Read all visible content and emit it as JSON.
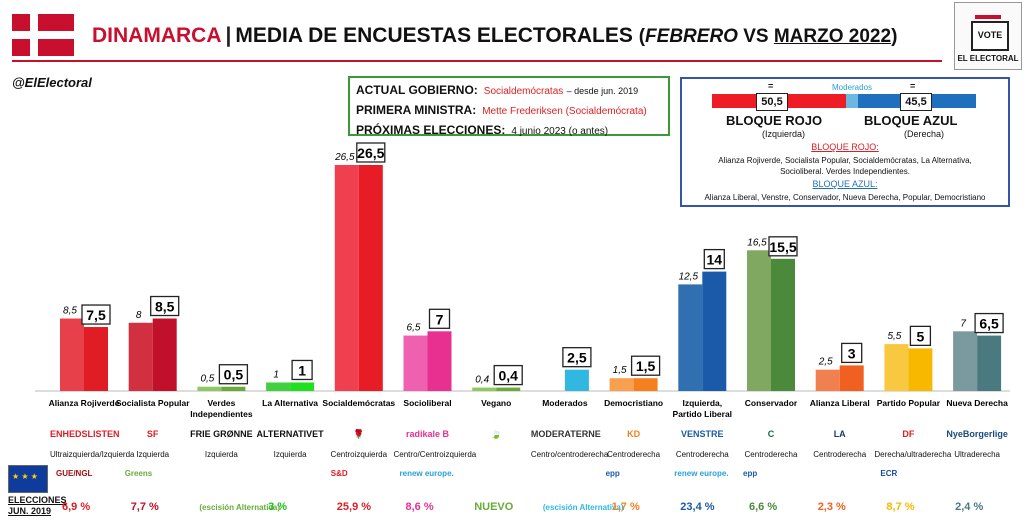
{
  "header": {
    "country": "DINAMARCA",
    "separator": "|",
    "title": "MEDIA DE ENCUESTAS ELECTORALES",
    "period_open": "(",
    "period_a": "FEBRERO",
    "period_vs": " VS ",
    "period_b": "MARZO 2022",
    "period_close": ")",
    "handle": "@ElElectoral",
    "logo_box": "VOTE",
    "logo_label": "EL ELECTORAL",
    "flag_colors": {
      "red": "#c8102e",
      "white": "#ffffff"
    }
  },
  "government": {
    "gov_label": "ACTUAL GOBIERNO:",
    "gov_value": "Socialdemócratas",
    "gov_note": "– desde jun. 2019",
    "pm_label": "PRIMERA MINISTRA:",
    "pm_value": "Mette Frederiksen (Socialdemócrata)",
    "next_label": "PRÓXIMAS ELECCIONES:",
    "next_value": "4 junio 2023 (o antes)"
  },
  "blocs": {
    "moderates_label": "Moderados",
    "equal_left": "=",
    "equal_right": "=",
    "red_value": "50,5",
    "blue_value": "45,5",
    "red_name": "BLOQUE ROJO",
    "red_sub": "(Izquierda)",
    "blue_name": "BLOQUE AZUL",
    "blue_sub": "(Derecha)",
    "red_heading": "BLOQUE ROJO:",
    "red_list_1": "Alianza Rojiverde, Socialista Popular, Socialdemócratas, La Alternativa,",
    "red_list_2": "Socioliberal. Verdes Independientes.",
    "blue_heading": "BLOQUE AZUL:",
    "blue_list": "Alianza Liberal, Venstre, Conservador, Nueva Derecha, Popular, Democristiano"
  },
  "chart_data": {
    "type": "bar",
    "ylim": [
      0,
      28
    ],
    "series": [
      {
        "name": "FEBRERO",
        "values": [
          8.5,
          8,
          0.5,
          1,
          26.5,
          6.5,
          0.4,
          null,
          1.5,
          12.5,
          16.5,
          2.5,
          5.5,
          7
        ]
      },
      {
        "name": "MARZO 2022",
        "values": [
          7.5,
          8.5,
          0.5,
          1,
          26.5,
          7,
          0.4,
          2.5,
          1.5,
          14,
          15.5,
          3,
          5,
          6.5
        ]
      }
    ],
    "categories": [
      "Alianza Rojiverde",
      "Socialista Popular",
      "Verdes Independientes",
      "La Alternativa",
      "Socialdemócratas",
      "Socioliberal",
      "Vegano",
      "Moderados",
      "Democristiano",
      "Izquierda, Partido Liberal",
      "Conservador",
      "Alianza Liberal",
      "Partido Popular",
      "Nueva Derecha"
    ],
    "prev_labels": [
      "8,5",
      "8",
      "0,5",
      "1",
      "26,5",
      "6,5",
      "0,4",
      "",
      "1,5",
      "12,5",
      "16,5",
      "2,5",
      "5,5",
      "7"
    ],
    "cur_labels": [
      "7,5",
      "8,5",
      "0,5",
      "1",
      "26,5",
      "7",
      "0,4",
      "2,5",
      "1,5",
      "14",
      "15,5",
      "3",
      "5",
      "6,5"
    ],
    "colors_prev": [
      "#e8404a",
      "#d0303f",
      "#8fc860",
      "#40d040",
      "#f04050",
      "#f060b0",
      "#8fc860",
      "#40c0e0",
      "#f8a050",
      "#3070b0",
      "#80a860",
      "#f08050",
      "#f8c840",
      "#7a9aa0"
    ],
    "colors_cur": [
      "#e01c25",
      "#c0102a",
      "#6aaa3a",
      "#20e020",
      "#e81c25",
      "#e83090",
      "#6aaa3a",
      "#30b8e0",
      "#f58020",
      "#1a5aa8",
      "#4a8a3a",
      "#f06020",
      "#f8b800",
      "#4a7a80"
    ]
  },
  "party_logos": [
    {
      "text": "ENHEDSLISTEN",
      "color": "#e01c25",
      "ideology": "Ultraizquierda/Izquierda"
    },
    {
      "text": "SF",
      "color": "#e01c25",
      "ideology": "Izquierda"
    },
    {
      "text": "FRIE GRØNNE",
      "color": "#111111",
      "ideology": "Izquierda"
    },
    {
      "text": "ALTERNATIVET",
      "color": "#111111",
      "ideology": "Izquierda"
    },
    {
      "text": "🌹",
      "color": "#e01c25",
      "ideology": "Centroizquierda"
    },
    {
      "text": "radikale B",
      "color": "#e83090",
      "ideology": "Centro/Centroizquierda"
    },
    {
      "text": "🍃",
      "color": "#6aaa3a",
      "ideology": ""
    },
    {
      "text": "MODERATERNE",
      "color": "#333333",
      "ideology": "Centro/centroderecha"
    },
    {
      "text": "KD",
      "color": "#f58020",
      "ideology": "Centroderecha"
    },
    {
      "text": "VENSTRE",
      "color": "#1a5aa8",
      "ideology": "Centroderecha"
    },
    {
      "text": "C",
      "color": "#1a6a3a",
      "ideology": "Centroderecha"
    },
    {
      "text": "LA",
      "color": "#1a3a6a",
      "ideology": "Centroderecha"
    },
    {
      "text": "DF",
      "color": "#e01c25",
      "ideology": "Derecha/ultraderecha"
    },
    {
      "text": "NyeBorgerlige",
      "color": "#1a4a7a",
      "ideology": "Ultraderecha"
    }
  ],
  "ep_groups": [
    {
      "text": "GUE/NGL",
      "color": "#a01010"
    },
    {
      "text": "Greens",
      "color": "#6aaa3a"
    },
    {
      "text": "S&D",
      "color": "#e01c25"
    },
    {
      "text": "renew europe.",
      "color": "#2aa0d8"
    },
    {
      "text": "epp",
      "color": "#1a5aa8"
    },
    {
      "text": "renew europe.",
      "color": "#2aa0d8"
    },
    {
      "text": "epp",
      "color": "#1a5aa8"
    },
    {
      "text": "ECR",
      "color": "#1a4a9a"
    }
  ],
  "elections": {
    "label_line1": "ELECCIONES",
    "label_line2": "JUN. 2019",
    "results": [
      {
        "text": "6,9 %",
        "color": "#e01c25",
        "note": ""
      },
      {
        "text": "7,7 %",
        "color": "#c0102a",
        "note": ""
      },
      {
        "text": "",
        "color": "#6aaa3a",
        "note": "(escisión Alternativa)"
      },
      {
        "text": "3 %",
        "color": "#20c020",
        "note": ""
      },
      {
        "text": "25,9 %",
        "color": "#e01c25",
        "note": ""
      },
      {
        "text": "8,6 %",
        "color": "#e83090",
        "note": ""
      },
      {
        "text": "NUEVO",
        "color": "#6aaa3a",
        "note": ""
      },
      {
        "text": "",
        "color": "#30b8e0",
        "note": "(escisión Alternativa)"
      },
      {
        "text": "1,7 %",
        "color": "#f58020",
        "note": ""
      },
      {
        "text": "23,4 %",
        "color": "#1a5aa8",
        "note": ""
      },
      {
        "text": "6,6 %",
        "color": "#4a8a3a",
        "note": ""
      },
      {
        "text": "2,3 %",
        "color": "#f06020",
        "note": ""
      },
      {
        "text": "8,7 %",
        "color": "#f8b800",
        "note": ""
      },
      {
        "text": "2,4 %",
        "color": "#4a7a80",
        "note": ""
      }
    ]
  }
}
